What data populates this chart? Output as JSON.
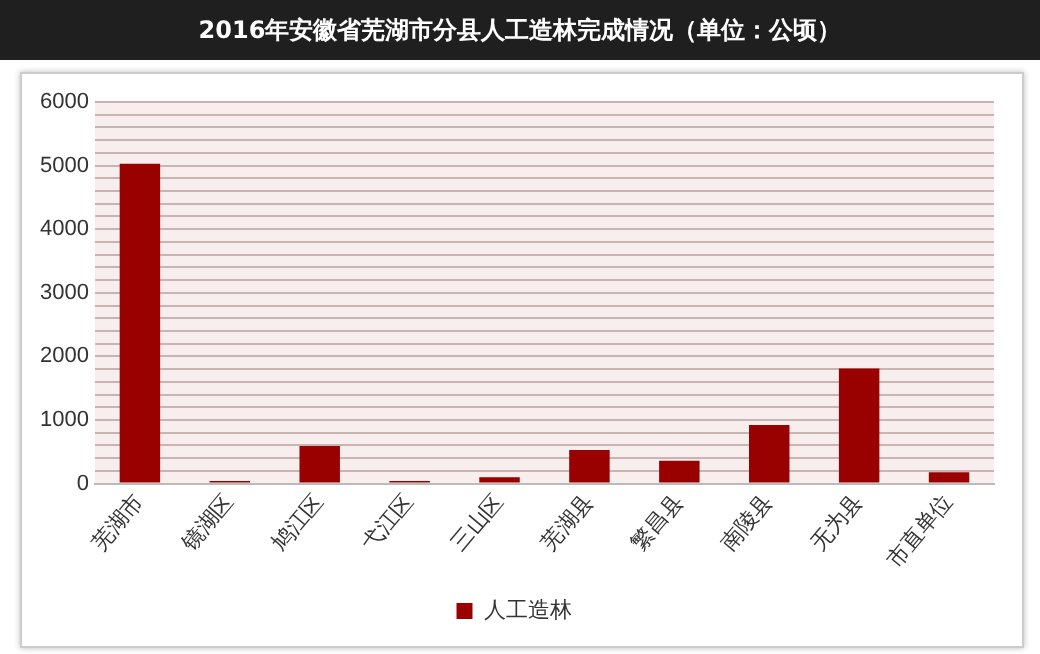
{
  "chart_data": {
    "type": "bar",
    "title": "2016年安徽省芜湖市分县人工造林完成情况（单位：公顷）",
    "categories": [
      "芜湖市",
      "镜湖区",
      "鸠江区",
      "弋江区",
      "三山区",
      "芜湖县",
      "繁昌县",
      "南陵县",
      "无为县",
      "市直单位"
    ],
    "series": [
      {
        "name": "人工造林",
        "color": "#990000",
        "values": [
          5030,
          40,
          590,
          40,
          100,
          530,
          360,
          920,
          1810,
          180
        ]
      }
    ],
    "ylim": [
      0,
      6000
    ],
    "yticks": [
      0,
      {
        "value": 200,
        "label": null
      },
      {
        "value": 400,
        "label": null
      },
      {
        "value": 600,
        "label": null
      },
      {
        "value": 800,
        "label": null
      },
      1000,
      {
        "value": 1200,
        "label": null
      },
      {
        "value": 1400,
        "label": null
      },
      {
        "value": 1600,
        "label": null
      },
      {
        "value": 1800,
        "label": null
      },
      2000,
      {
        "value": 2200,
        "label": null
      },
      {
        "value": 2400,
        "label": null
      },
      {
        "value": 2600,
        "label": null
      },
      {
        "value": 2800,
        "label": null
      },
      3000,
      {
        "value": 3200,
        "label": null
      },
      {
        "value": 3400,
        "label": null
      },
      {
        "value": 3600,
        "label": null
      },
      {
        "value": 3800,
        "label": null
      },
      4000,
      {
        "value": 4200,
        "label": null
      },
      {
        "value": 4400,
        "label": null
      },
      {
        "value": 4600,
        "label": null
      },
      {
        "value": 4800,
        "label": null
      },
      5000,
      {
        "value": 5200,
        "label": null
      },
      {
        "value": 5400,
        "label": null
      },
      {
        "value": 5600,
        "label": null
      },
      {
        "value": 5800,
        "label": null
      },
      6000
    ],
    "grid": "y",
    "legend": "bottom"
  }
}
